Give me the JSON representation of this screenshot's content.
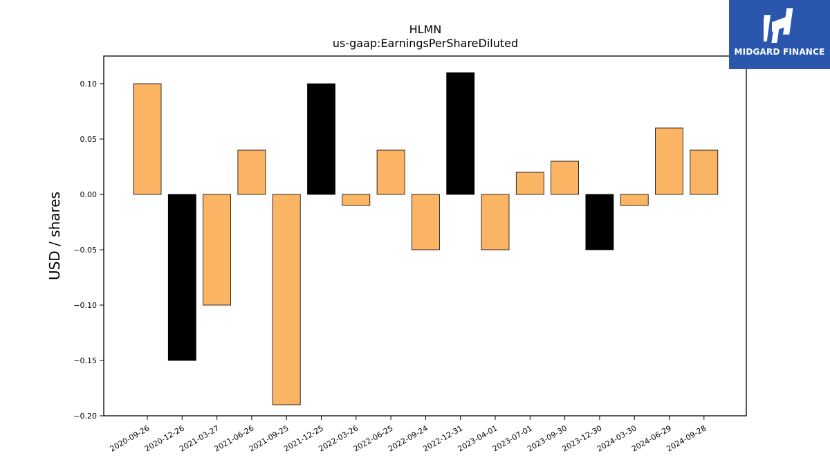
{
  "brand": {
    "name": "MIDGARD FINANCE",
    "logo_color": "#2a57ad"
  },
  "chart_data": {
    "type": "bar",
    "title": "HLMN",
    "subtitle": "us-gaap:EarningsPerShareDiluted",
    "xlabel": "",
    "ylabel": "USD / shares",
    "ylim": [
      -0.2,
      0.125
    ],
    "yticks": [
      "0.10",
      "0.05",
      "0.00",
      "−0.05",
      "−0.10",
      "−0.15",
      "−0.20"
    ],
    "ytick_values": [
      0.1,
      0.05,
      0.0,
      -0.05,
      -0.1,
      -0.15,
      -0.2
    ],
    "categories": [
      "2020-09-26",
      "2020-12-26",
      "2021-03-27",
      "2021-06-26",
      "2021-09-25",
      "2021-12-25",
      "2022-03-26",
      "2022-06-25",
      "2022-09-24",
      "2022-12-31",
      "2023-04-01",
      "2023-07-01",
      "2023-09-30",
      "2023-12-30",
      "2024-03-30",
      "2024-06-29",
      "2024-09-28"
    ],
    "values": [
      0.1,
      -0.15,
      -0.1,
      0.04,
      -0.19,
      0.1,
      -0.01,
      0.04,
      -0.05,
      0.11,
      -0.05,
      0.02,
      0.03,
      -0.05,
      -0.01,
      0.06,
      0.04
    ],
    "bar_colors": [
      "#fbb463",
      "#000000",
      "#fbb463",
      "#fbb463",
      "#fbb463",
      "#000000",
      "#fbb463",
      "#fbb463",
      "#fbb463",
      "#000000",
      "#fbb463",
      "#fbb463",
      "#fbb463",
      "#000000",
      "#fbb463",
      "#fbb463",
      "#fbb463"
    ],
    "grid": false,
    "legend": "none"
  }
}
